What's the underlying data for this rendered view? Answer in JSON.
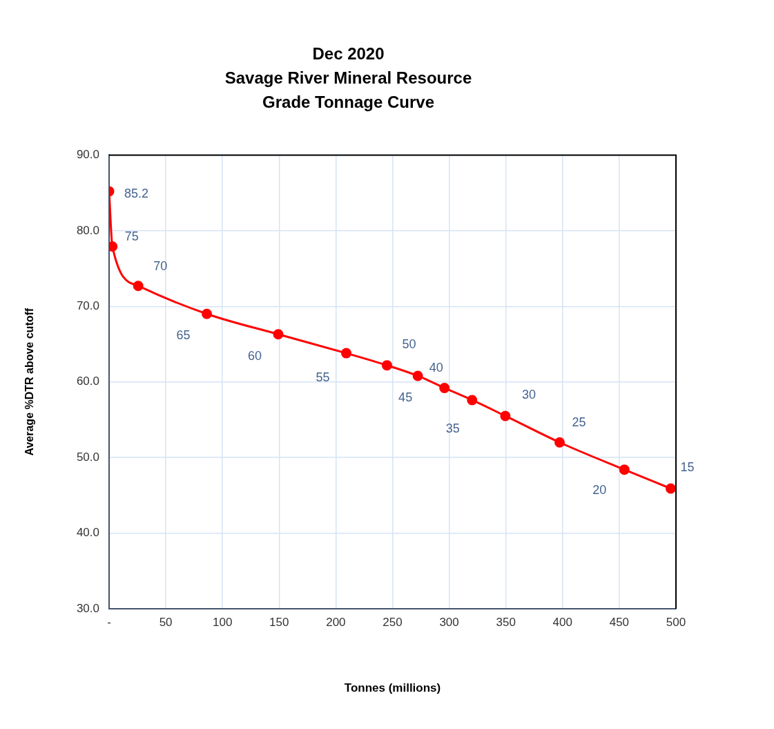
{
  "chart_data": {
    "type": "line",
    "title": "Dec 2020\nSavage River Mineral Resource\nGrade Tonnage Curve",
    "xlabel": "Tonnes (millions)",
    "ylabel": "Average %DTR above cutoff",
    "x": [
      0,
      2.9,
      25.7,
      86.2,
      149.2,
      209.2,
      245.1,
      272.3,
      295.8,
      320.2,
      349.5,
      397.4,
      454.5,
      495.4
    ],
    "series": [
      {
        "color": "#ff0000",
        "values": [
          85.2,
          77.9,
          72.7,
          69.0,
          66.3,
          63.8,
          62.2,
          60.8,
          59.2,
          57.6,
          55.5,
          52.0,
          48.4,
          45.9
        ]
      }
    ],
    "xlim": [
      0,
      500
    ],
    "xticks": [
      {
        "value": 0,
        "label": "-"
      },
      50,
      100,
      150,
      200,
      250,
      300,
      350,
      400,
      450,
      500
    ],
    "ylim": [
      30,
      90
    ],
    "yticks": [
      {
        "value": 30,
        "label": "30.0"
      },
      {
        "value": 40,
        "label": "40.0"
      },
      {
        "value": 50,
        "label": "50.0"
      },
      {
        "value": 60,
        "label": "60.0"
      },
      {
        "value": 70,
        "label": "70.0"
      },
      {
        "value": 80,
        "label": "80.0"
      },
      {
        "value": 90,
        "label": "90.0"
      }
    ],
    "grid": true,
    "legend": false,
    "marker": "circle",
    "line_style": "solid",
    "annotations": [
      {
        "text": "85.2",
        "x": 0,
        "y": 85.2
      },
      {
        "text": "75",
        "x": 2.9,
        "y": 77.9
      },
      {
        "text": "70",
        "x": 25.7,
        "y": 72.7
      },
      {
        "text": "65",
        "x": 86.2,
        "y": 69.0
      },
      {
        "text": "60",
        "x": 149.2,
        "y": 66.3
      },
      {
        "text": "55",
        "x": 209.2,
        "y": 63.8
      },
      {
        "text": "50",
        "x": 245.1,
        "y": 62.2
      },
      {
        "text": "45",
        "x": 272.3,
        "y": 60.8
      },
      {
        "text": "40",
        "x": 295.8,
        "y": 59.2
      },
      {
        "text": "35",
        "x": 320.2,
        "y": 57.6
      },
      {
        "text": "30",
        "x": 349.5,
        "y": 55.5
      },
      {
        "text": "25",
        "x": 397.4,
        "y": 52.0
      },
      {
        "text": "20",
        "x": 454.5,
        "y": 48.4
      },
      {
        "text": "15",
        "x": 495.4,
        "y": 45.9
      }
    ]
  }
}
